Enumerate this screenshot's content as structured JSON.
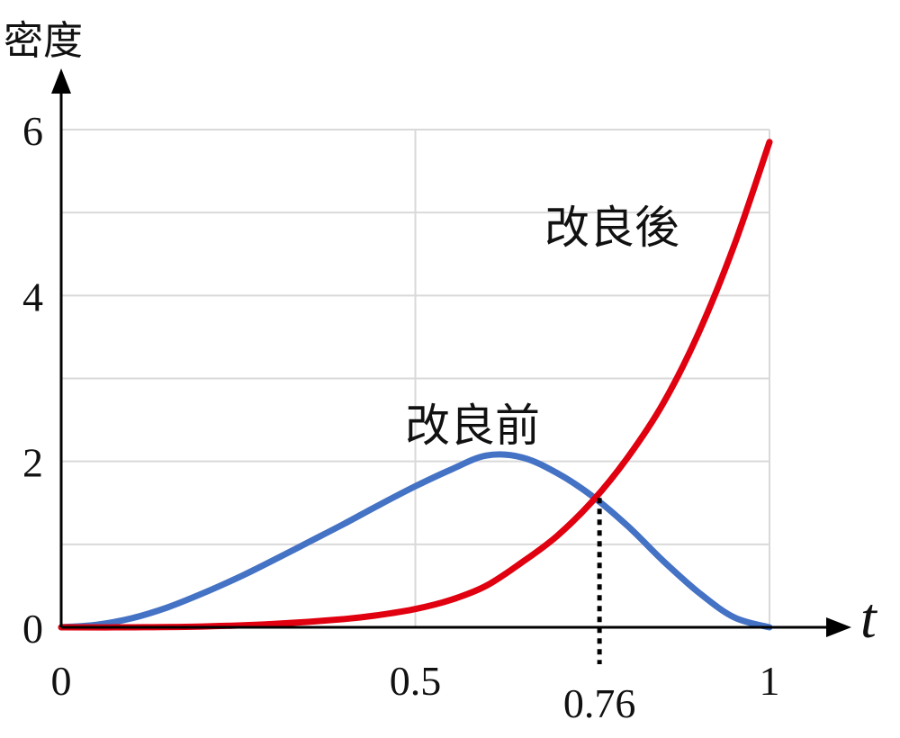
{
  "chart_data": {
    "type": "line",
    "xlabel": "t",
    "ylabel": "密度",
    "xlim": [
      0,
      1
    ],
    "ylim": [
      0,
      6
    ],
    "grid": true,
    "x_ticks": [
      0,
      0.5,
      1
    ],
    "x_tick_labels": [
      "0",
      "0.5",
      "1"
    ],
    "y_ticks": [
      0,
      2,
      4,
      6
    ],
    "y_tick_labels": [
      "0",
      "2",
      "4",
      "6"
    ],
    "series": [
      {
        "name": "改良前",
        "color": "#4472c4",
        "x": [
          0,
          0.05,
          0.1,
          0.15,
          0.2,
          0.25,
          0.3,
          0.35,
          0.4,
          0.45,
          0.5,
          0.55,
          0.6,
          0.65,
          0.7,
          0.75,
          0.8,
          0.85,
          0.9,
          0.95,
          1
        ],
        "values": [
          0,
          0.03,
          0.11,
          0.24,
          0.41,
          0.6,
          0.81,
          1.03,
          1.25,
          1.48,
          1.7,
          1.9,
          2.07,
          2.05,
          1.86,
          1.58,
          1.22,
          0.8,
          0.42,
          0.12,
          0
        ]
      },
      {
        "name": "改良後",
        "color": "#e0000f",
        "x": [
          0,
          0.1,
          0.2,
          0.3,
          0.4,
          0.45,
          0.5,
          0.55,
          0.6,
          0.65,
          0.7,
          0.75,
          0.8,
          0.85,
          0.9,
          0.95,
          1
        ],
        "values": [
          0,
          0,
          0.01,
          0.04,
          0.1,
          0.15,
          0.22,
          0.33,
          0.5,
          0.78,
          1.1,
          1.52,
          2.05,
          2.7,
          3.55,
          4.6,
          5.85
        ]
      }
    ],
    "annotations": [
      {
        "text": "0.76",
        "x": 0.76,
        "y": 1.56,
        "style": "dotted-vertical-drop"
      }
    ]
  }
}
